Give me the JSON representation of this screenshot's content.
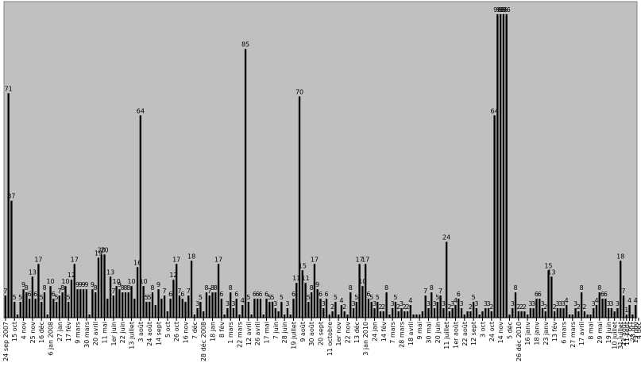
{
  "chart_data": {
    "type": "bar",
    "title": "",
    "xlabel": "",
    "ylabel": "",
    "ylim": [
      0,
      100
    ],
    "grid": false,
    "legend": "none",
    "colors": {
      "plot_bg": "#c0c0c0",
      "bar": "#000000",
      "text": "#000000",
      "axis": "#000000"
    },
    "values": [
      7,
      71,
      37,
      5,
      1,
      5,
      9,
      8,
      6,
      13,
      6,
      17,
      5,
      8,
      1,
      10,
      6,
      5,
      7,
      8,
      10,
      5,
      12,
      17,
      9,
      9,
      9,
      9,
      1,
      9,
      8,
      19,
      20,
      20,
      6,
      13,
      7,
      10,
      9,
      8,
      8,
      8,
      10,
      6,
      16,
      64,
      10,
      5,
      5,
      8,
      4,
      9,
      6,
      7,
      2,
      6,
      12,
      17,
      7,
      6,
      5,
      7,
      18,
      1,
      3,
      5,
      2,
      8,
      7,
      8,
      8,
      17,
      6,
      1,
      3,
      8,
      3,
      6,
      1,
      4,
      85,
      5,
      1,
      6,
      6,
      6,
      1,
      6,
      5,
      5,
      3,
      2,
      5,
      1,
      3,
      1,
      6,
      11,
      70,
      15,
      11,
      5,
      8,
      17,
      9,
      6,
      3,
      6,
      1,
      2,
      5,
      1,
      4,
      2,
      1,
      8,
      3,
      5,
      17,
      10,
      17,
      6,
      5,
      3,
      5,
      2,
      2,
      8,
      1,
      3,
      5,
      2,
      3,
      2,
      2,
      4,
      1,
      1,
      1,
      2,
      7,
      3,
      8,
      3,
      5,
      7,
      3,
      24,
      2,
      3,
      4,
      6,
      3,
      1,
      2,
      2,
      5,
      3,
      1,
      2,
      3,
      3,
      2,
      64,
      96,
      96,
      96,
      96,
      1,
      3,
      8,
      2,
      2,
      2,
      1,
      3,
      3,
      6,
      6,
      3,
      2,
      15,
      13,
      2,
      3,
      3,
      3,
      4,
      1,
      1,
      3,
      2,
      8,
      2,
      1,
      1,
      3,
      4,
      8,
      6,
      6,
      3,
      3,
      2,
      3,
      18,
      7,
      1,
      4,
      1,
      4
    ],
    "data_labels": [
      {
        "i": 0,
        "text": "7"
      },
      {
        "i": 1,
        "text": "71"
      },
      {
        "i": 2,
        "text": "37"
      },
      {
        "i": 3,
        "text": "5"
      },
      {
        "i": 5,
        "text": "5"
      },
      {
        "i": 6,
        "text": "9"
      },
      {
        "i": 7,
        "text": "8"
      },
      {
        "i": 8,
        "text": "6"
      },
      {
        "i": 9,
        "text": "13"
      },
      {
        "i": 10,
        "text": "6"
      },
      {
        "i": 11,
        "text": "17"
      },
      {
        "i": 12,
        "text": "5"
      },
      {
        "i": 13,
        "text": "8"
      },
      {
        "i": 15,
        "text": "10"
      },
      {
        "i": 16,
        "text": "6"
      },
      {
        "i": 17,
        "text": "5"
      },
      {
        "i": 18,
        "text": "7"
      },
      {
        "i": 19,
        "text": "8"
      },
      {
        "i": 20,
        "text": "10"
      },
      {
        "i": 21,
        "text": "5"
      },
      {
        "i": 22,
        "text": "12"
      },
      {
        "i": 23,
        "text": "17"
      },
      {
        "i": 24,
        "text": "9"
      },
      {
        "i": 25,
        "text": "9"
      },
      {
        "i": 26,
        "text": "9"
      },
      {
        "i": 27,
        "text": "9"
      },
      {
        "i": 29,
        "text": "9"
      },
      {
        "i": 30,
        "text": "8"
      },
      {
        "i": 31,
        "text": "19"
      },
      {
        "i": 32,
        "text": "20"
      },
      {
        "i": 33,
        "text": "20"
      },
      {
        "i": 35,
        "text": "13"
      },
      {
        "i": 36,
        "text": "7"
      },
      {
        "i": 37,
        "text": "10"
      },
      {
        "i": 38,
        "text": "9"
      },
      {
        "i": 39,
        "text": "8"
      },
      {
        "i": 40,
        "text": "8"
      },
      {
        "i": 41,
        "text": "8"
      },
      {
        "i": 42,
        "text": "10"
      },
      {
        "i": 44,
        "text": "16"
      },
      {
        "i": 45,
        "text": "64"
      },
      {
        "i": 46,
        "text": "10"
      },
      {
        "i": 47,
        "text": "5"
      },
      {
        "i": 48,
        "text": "5"
      },
      {
        "i": 49,
        "text": "8"
      },
      {
        "i": 51,
        "text": "9"
      },
      {
        "i": 53,
        "text": "7"
      },
      {
        "i": 55,
        "text": "6"
      },
      {
        "i": 56,
        "text": "12"
      },
      {
        "i": 57,
        "text": "17"
      },
      {
        "i": 58,
        "text": "7"
      },
      {
        "i": 59,
        "text": "6"
      },
      {
        "i": 61,
        "text": "7"
      },
      {
        "i": 62,
        "text": "18"
      },
      {
        "i": 64,
        "text": "3"
      },
      {
        "i": 65,
        "text": "5"
      },
      {
        "i": 67,
        "text": "8"
      },
      {
        "i": 68,
        "text": "7"
      },
      {
        "i": 69,
        "text": "8"
      },
      {
        "i": 70,
        "text": "8"
      },
      {
        "i": 71,
        "text": "17"
      },
      {
        "i": 72,
        "text": "6"
      },
      {
        "i": 74,
        "text": "3"
      },
      {
        "i": 75,
        "text": "8"
      },
      {
        "i": 76,
        "text": "3"
      },
      {
        "i": 77,
        "text": "6"
      },
      {
        "i": 79,
        "text": "4"
      },
      {
        "i": 80,
        "text": "85"
      },
      {
        "i": 81,
        "text": "5"
      },
      {
        "i": 83,
        "text": "6"
      },
      {
        "i": 84,
        "text": "6"
      },
      {
        "i": 85,
        "text": "6"
      },
      {
        "i": 87,
        "text": "6"
      },
      {
        "i": 88,
        "text": "5"
      },
      {
        "i": 89,
        "text": "5"
      },
      {
        "i": 90,
        "text": "3"
      },
      {
        "i": 92,
        "text": "5"
      },
      {
        "i": 94,
        "text": "3"
      },
      {
        "i": 96,
        "text": "6"
      },
      {
        "i": 97,
        "text": "11"
      },
      {
        "i": 98,
        "text": "70"
      },
      {
        "i": 99,
        "text": "15"
      },
      {
        "i": 100,
        "text": "11"
      },
      {
        "i": 101,
        "text": "5"
      },
      {
        "i": 102,
        "text": "8"
      },
      {
        "i": 103,
        "text": "17"
      },
      {
        "i": 104,
        "text": "9"
      },
      {
        "i": 105,
        "text": "6"
      },
      {
        "i": 106,
        "text": "3"
      },
      {
        "i": 107,
        "text": "6"
      },
      {
        "i": 109,
        "text": "2"
      },
      {
        "i": 110,
        "text": "5"
      },
      {
        "i": 112,
        "text": "4"
      },
      {
        "i": 113,
        "text": "2"
      },
      {
        "i": 115,
        "text": "8"
      },
      {
        "i": 116,
        "text": "3"
      },
      {
        "i": 117,
        "text": "5"
      },
      {
        "i": 118,
        "text": "17"
      },
      {
        "i": 119,
        "text": "10"
      },
      {
        "i": 120,
        "text": "17"
      },
      {
        "i": 121,
        "text": "6"
      },
      {
        "i": 122,
        "text": "5"
      },
      {
        "i": 123,
        "text": "3"
      },
      {
        "i": 124,
        "text": "5"
      },
      {
        "i": 125,
        "text": "2"
      },
      {
        "i": 126,
        "text": "2"
      },
      {
        "i": 127,
        "text": "8"
      },
      {
        "i": 129,
        "text": "3"
      },
      {
        "i": 130,
        "text": "5"
      },
      {
        "i": 131,
        "text": "2"
      },
      {
        "i": 132,
        "text": "3"
      },
      {
        "i": 133,
        "text": "2"
      },
      {
        "i": 134,
        "text": "2"
      },
      {
        "i": 135,
        "text": "4"
      },
      {
        "i": 140,
        "text": "7"
      },
      {
        "i": 141,
        "text": "3"
      },
      {
        "i": 142,
        "text": "8"
      },
      {
        "i": 143,
        "text": "3"
      },
      {
        "i": 144,
        "text": "5"
      },
      {
        "i": 145,
        "text": "7"
      },
      {
        "i": 146,
        "text": "3"
      },
      {
        "i": 147,
        "text": "24"
      },
      {
        "i": 148,
        "text": "2"
      },
      {
        "i": 149,
        "text": "3"
      },
      {
        "i": 150,
        "text": "4"
      },
      {
        "i": 151,
        "text": "6"
      },
      {
        "i": 152,
        "text": "3"
      },
      {
        "i": 155,
        "text": "2"
      },
      {
        "i": 156,
        "text": "5"
      },
      {
        "i": 157,
        "text": "3"
      },
      {
        "i": 160,
        "text": "3"
      },
      {
        "i": 161,
        "text": "3"
      },
      {
        "i": 162,
        "text": "2"
      },
      {
        "i": 163,
        "text": "64"
      },
      {
        "i": 164,
        "text": "96"
      },
      {
        "i": 165,
        "text": "96"
      },
      {
        "i": 166,
        "text": "96"
      },
      {
        "i": 167,
        "text": "96"
      },
      {
        "i": 169,
        "text": "3"
      },
      {
        "i": 170,
        "text": "8"
      },
      {
        "i": 171,
        "text": "2"
      },
      {
        "i": 172,
        "text": "2"
      },
      {
        "i": 173,
        "text": "2"
      },
      {
        "i": 175,
        "text": "3"
      },
      {
        "i": 176,
        "text": "3"
      },
      {
        "i": 177,
        "text": "6"
      },
      {
        "i": 178,
        "text": "6"
      },
      {
        "i": 179,
        "text": "3"
      },
      {
        "i": 180,
        "text": "2"
      },
      {
        "i": 181,
        "text": "15"
      },
      {
        "i": 182,
        "text": "13"
      },
      {
        "i": 183,
        "text": "2"
      },
      {
        "i": 184,
        "text": "3"
      },
      {
        "i": 185,
        "text": "3"
      },
      {
        "i": 186,
        "text": "3"
      },
      {
        "i": 187,
        "text": "4"
      },
      {
        "i": 190,
        "text": "3"
      },
      {
        "i": 191,
        "text": "2"
      },
      {
        "i": 192,
        "text": "8"
      },
      {
        "i": 193,
        "text": "2"
      },
      {
        "i": 196,
        "text": "3"
      },
      {
        "i": 197,
        "text": "4"
      },
      {
        "i": 198,
        "text": "8"
      },
      {
        "i": 199,
        "text": "6"
      },
      {
        "i": 200,
        "text": "6"
      },
      {
        "i": 201,
        "text": "3"
      },
      {
        "i": 202,
        "text": "3"
      },
      {
        "i": 204,
        "text": "3"
      },
      {
        "i": 205,
        "text": "18"
      },
      {
        "i": 206,
        "text": "7"
      },
      {
        "i": 207,
        "text": "1"
      },
      {
        "i": 208,
        "text": "4"
      },
      {
        "i": 210,
        "text": "4"
      }
    ],
    "tick_labels": [
      {
        "i": 0,
        "text": "24 sep 2007"
      },
      {
        "i": 3,
        "text": "15 oct"
      },
      {
        "i": 6,
        "text": "4 nov"
      },
      {
        "i": 9,
        "text": "25 nov"
      },
      {
        "i": 12,
        "text": "16 déc"
      },
      {
        "i": 15,
        "text": "6 jan 2008"
      },
      {
        "i": 18,
        "text": "27 jan"
      },
      {
        "i": 21,
        "text": "17 fév"
      },
      {
        "i": 24,
        "text": "9 mars"
      },
      {
        "i": 27,
        "text": "30 mars"
      },
      {
        "i": 30,
        "text": "20 avril"
      },
      {
        "i": 33,
        "text": "11 mai"
      },
      {
        "i": 36,
        "text": "1er juin"
      },
      {
        "i": 39,
        "text": "22 juin"
      },
      {
        "i": 42,
        "text": "13 juillet"
      },
      {
        "i": 45,
        "text": "3 août"
      },
      {
        "i": 48,
        "text": "24 août"
      },
      {
        "i": 51,
        "text": "14 sept"
      },
      {
        "i": 54,
        "text": "5 oct"
      },
      {
        "i": 57,
        "text": "26 oct"
      },
      {
        "i": 60,
        "text": "16 nov"
      },
      {
        "i": 63,
        "text": "7 déc"
      },
      {
        "i": 66,
        "text": "28 déc 2008"
      },
      {
        "i": 69,
        "text": "18 jan"
      },
      {
        "i": 72,
        "text": "8 fév"
      },
      {
        "i": 75,
        "text": "1 mars"
      },
      {
        "i": 78,
        "text": "22 mars"
      },
      {
        "i": 81,
        "text": "12 avril"
      },
      {
        "i": 84,
        "text": "26 avril"
      },
      {
        "i": 87,
        "text": "17 mai"
      },
      {
        "i": 90,
        "text": "7 juin"
      },
      {
        "i": 93,
        "text": "28 juin"
      },
      {
        "i": 96,
        "text": "19 juillet"
      },
      {
        "i": 99,
        "text": "9 août"
      },
      {
        "i": 102,
        "text": "30 août"
      },
      {
        "i": 105,
        "text": "20 sept"
      },
      {
        "i": 108,
        "text": "11 octobre"
      },
      {
        "i": 111,
        "text": "1er nov"
      },
      {
        "i": 114,
        "text": "22 nov"
      },
      {
        "i": 117,
        "text": "13 déc"
      },
      {
        "i": 120,
        "text": "3 jan 2010"
      },
      {
        "i": 123,
        "text": "24 jan"
      },
      {
        "i": 126,
        "text": "14 fév"
      },
      {
        "i": 129,
        "text": "7 mars"
      },
      {
        "i": 132,
        "text": "28 mars"
      },
      {
        "i": 135,
        "text": "18 avril"
      },
      {
        "i": 138,
        "text": "9 mai"
      },
      {
        "i": 141,
        "text": "30 mai"
      },
      {
        "i": 144,
        "text": "20 juin"
      },
      {
        "i": 147,
        "text": "11 juillet"
      },
      {
        "i": 150,
        "text": "1er août"
      },
      {
        "i": 153,
        "text": "22 août"
      },
      {
        "i": 156,
        "text": "12 sept"
      },
      {
        "i": 159,
        "text": "3 oct"
      },
      {
        "i": 162,
        "text": "24 oct"
      },
      {
        "i": 165,
        "text": "14 nov"
      },
      {
        "i": 168,
        "text": "5 déc"
      },
      {
        "i": 171,
        "text": "26 déc 2010"
      },
      {
        "i": 174,
        "text": "16 janv"
      },
      {
        "i": 177,
        "text": "18 janv"
      },
      {
        "i": 180,
        "text": "23 janv"
      },
      {
        "i": 183,
        "text": "13 fév"
      },
      {
        "i": 186,
        "text": "6 mars"
      },
      {
        "i": 189,
        "text": "27 mars"
      },
      {
        "i": 192,
        "text": "17 avril"
      },
      {
        "i": 195,
        "text": "8 mai"
      },
      {
        "i": 198,
        "text": "29 mai"
      },
      {
        "i": 201,
        "text": "19 juin"
      },
      {
        "i": 203,
        "text": "10 juillet"
      },
      {
        "i": 205,
        "text": "31 juillet"
      },
      {
        "i": 206,
        "text": "21 août"
      },
      {
        "i": 207,
        "text": "11 sept"
      },
      {
        "i": 208,
        "text": "2 oct"
      },
      {
        "i": 209,
        "text": "23 oct"
      },
      {
        "i": 210,
        "text": "13 nov"
      },
      {
        "i": 211,
        "text": "4 déc"
      }
    ]
  }
}
